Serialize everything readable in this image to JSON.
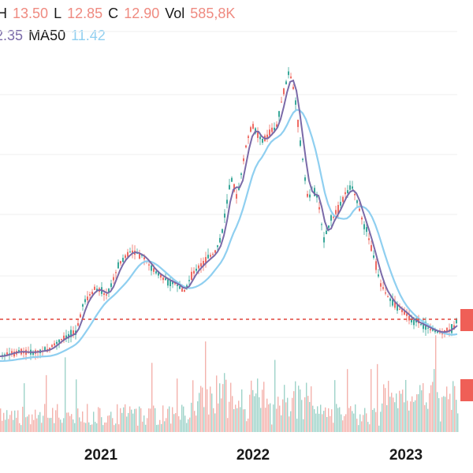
{
  "legend": {
    "h_label": "H",
    "h_value": "13.50",
    "l_label": "L",
    "l_value": "12.85",
    "c_label": "C",
    "c_value": "12.90",
    "vol_label": "Vol",
    "vol_value": "585,8K",
    "ma20_value": "2.35",
    "ma50_label": "MA50",
    "ma50_value": "11.42"
  },
  "colors": {
    "up": "#3aa89a",
    "down": "#ef6b63",
    "ma20": "#7a6aa8",
    "ma50": "#8fcff0",
    "price_line": "#e0453b",
    "marker": "#ef5f57",
    "volume_up": "#9ed3c9",
    "volume_down": "#f4b2ac"
  },
  "chart_data": {
    "type": "candlestick",
    "x_ticks": [
      "2021",
      "2022",
      "2023"
    ],
    "price_guide": 12.9,
    "series": [
      {
        "name": "MA50",
        "approx_points": [
          [
            "2020-05",
            1.6
          ],
          [
            "2020-09",
            1.9
          ],
          [
            "2020-12",
            3.6
          ],
          [
            "2021-03",
            6.0
          ],
          [
            "2021-06",
            6.0
          ],
          [
            "2021-09",
            6.2
          ],
          [
            "2021-12",
            10.5
          ],
          [
            "2022-03",
            15.5
          ],
          [
            "2022-06",
            13.0
          ],
          [
            "2022-09",
            10.5
          ],
          [
            "2022-12",
            3.6
          ],
          [
            "2023-03",
            1.8
          ],
          [
            "2023-05",
            2.8
          ]
        ]
      }
    ]
  }
}
